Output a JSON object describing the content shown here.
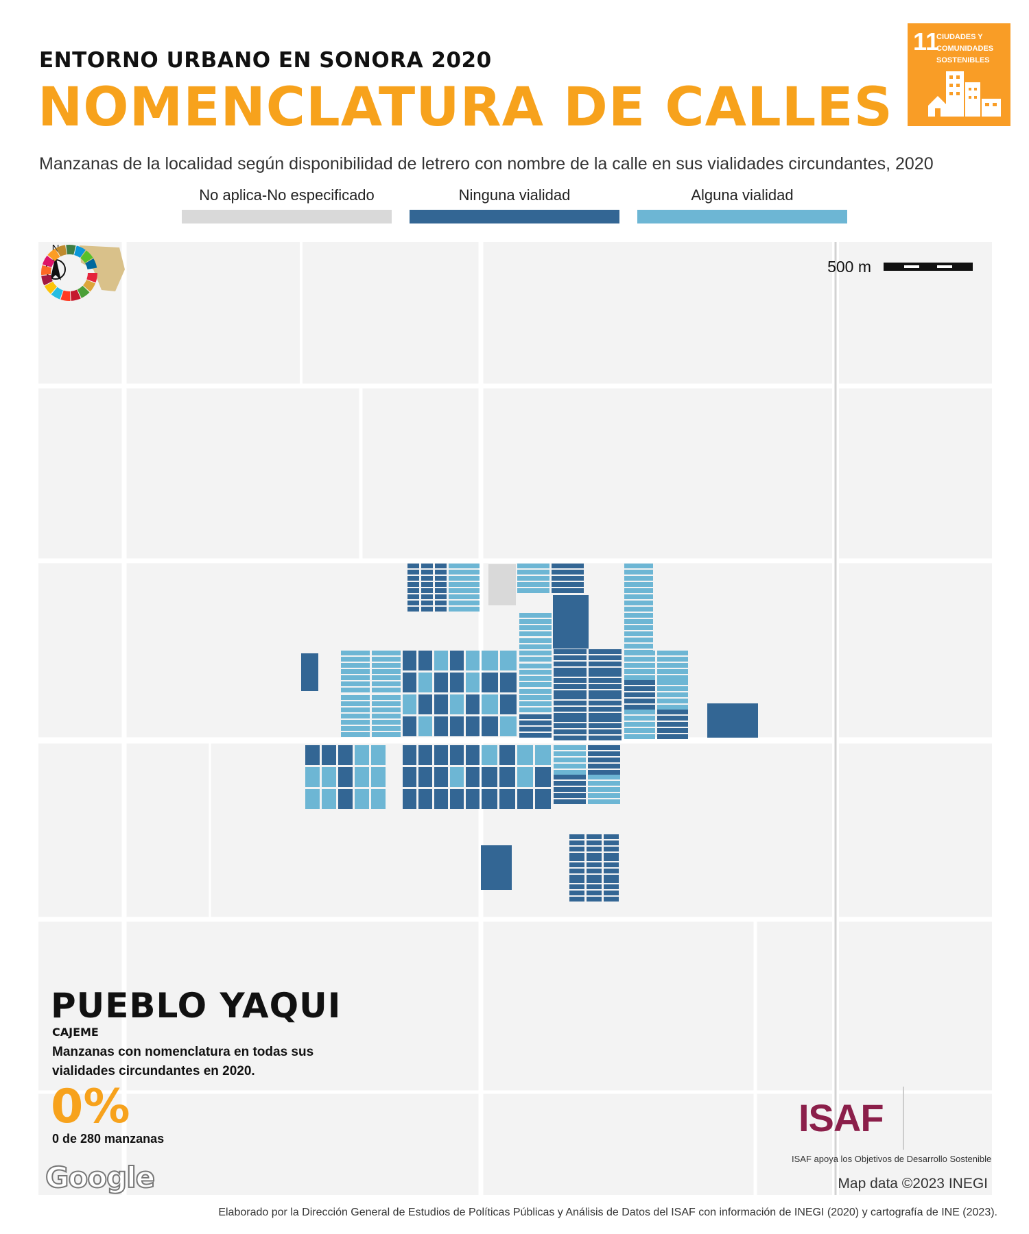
{
  "header": {
    "kicker": "ENTORNO URBANO EN SONORA 2020",
    "title": "NOMENCLATURA DE CALLES",
    "subtitle": "Manzanas de la localidad según disponibilidad de letrero con nombre de la calle en sus vialidades circundantes, 2020"
  },
  "sdg_badge": {
    "number": "11",
    "text": "CIUDADES Y COMUNIDADES SOSTENIBLES",
    "color": "#f99d26"
  },
  "legend": [
    {
      "label": "No aplica-No especificado",
      "color": "#d9d9d9"
    },
    {
      "label": "Ninguna vialidad",
      "color": "#336694"
    },
    {
      "label": "Alguna vialidad",
      "color": "#6db6d4"
    }
  ],
  "map": {
    "scale_label": "500 m",
    "north_label": "N",
    "place_name": "PUEBLO YAQUI",
    "municipality": "CAJEME",
    "stat_description": "Manzanas con nomenclatura en todas sus vialidades circundantes en 2020.",
    "percentage": "0%",
    "count_text": "0 de 280 manzanas",
    "google_label": "Google",
    "map_data_credit": "Map data ©2023 INEGI"
  },
  "logos": {
    "isaf": "ISAF",
    "isaf_caption": "ISAF apoya los Objetivos de Desarrollo Sostenible",
    "isaf_color": "#8b1f4a"
  },
  "footer": "Elaborado por la Dirección General de Estudios de Políticas Públicas y Análisis de Datos del ISAF con información de INEGI (2020) y cartografía de INE (2023)."
}
